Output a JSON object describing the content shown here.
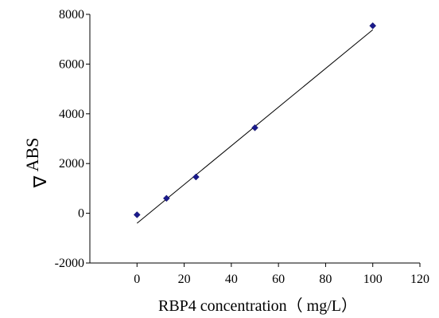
{
  "chart_data": {
    "type": "scatter",
    "title": "",
    "xlabel": "RBP4 concentration（ mg/L）",
    "ylabel": "ABS",
    "ylabel_symbol": "∇",
    "xlim": [
      -20,
      120
    ],
    "ylim": [
      -2000,
      8000
    ],
    "x_ticks": [
      0,
      20,
      40,
      60,
      80,
      100,
      120
    ],
    "y_ticks": [
      -2000,
      0,
      2000,
      4000,
      6000,
      8000
    ],
    "grid": false,
    "legend": "none",
    "marker_color": "#1a1a8c",
    "series": [
      {
        "x": [
          0,
          12.5,
          25,
          50,
          100
        ],
        "y": [
          -60,
          600,
          1460,
          3440,
          7540
        ]
      }
    ],
    "trendline": {
      "x": [
        0,
        100
      ],
      "y": [
        -400,
        7380
      ]
    }
  }
}
